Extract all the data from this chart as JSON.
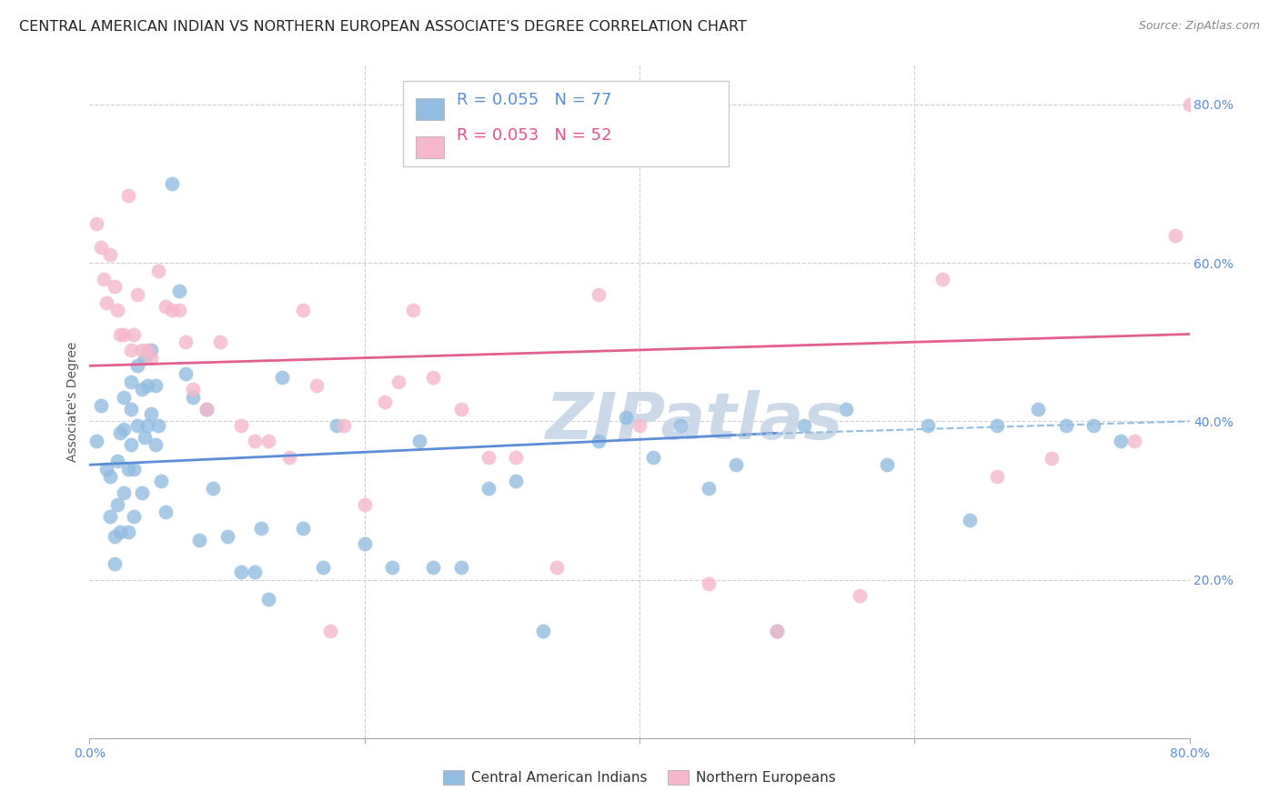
{
  "title": "CENTRAL AMERICAN INDIAN VS NORTHERN EUROPEAN ASSOCIATE'S DEGREE CORRELATION CHART",
  "source": "Source: ZipAtlas.com",
  "ylabel": "Associate's Degree",
  "xlim": [
    0.0,
    0.8
  ],
  "ylim": [
    0.0,
    0.85
  ],
  "blue_R": "R = 0.055",
  "blue_N": "N = 77",
  "pink_R": "R = 0.053",
  "pink_N": "N = 52",
  "blue_color": "#92bde0",
  "pink_color": "#f5b8cb",
  "blue_line_color": "#5b8dd9",
  "pink_line_color": "#e06090",
  "dashed_line_color": "#92bde0",
  "right_tick_color": "#5b8dd9",
  "watermark_color": "#ccd9e8",
  "background_color": "#ffffff",
  "grid_color": "#d0d0d0",
  "blue_scatter_x": [
    0.005,
    0.008,
    0.012,
    0.015,
    0.015,
    0.018,
    0.018,
    0.02,
    0.02,
    0.022,
    0.022,
    0.025,
    0.025,
    0.025,
    0.028,
    0.028,
    0.03,
    0.03,
    0.03,
    0.032,
    0.032,
    0.035,
    0.035,
    0.038,
    0.038,
    0.04,
    0.04,
    0.042,
    0.042,
    0.045,
    0.045,
    0.048,
    0.048,
    0.05,
    0.052,
    0.055,
    0.06,
    0.065,
    0.07,
    0.075,
    0.08,
    0.085,
    0.09,
    0.1,
    0.11,
    0.12,
    0.125,
    0.13,
    0.14,
    0.155,
    0.17,
    0.18,
    0.2,
    0.22,
    0.24,
    0.25,
    0.27,
    0.29,
    0.31,
    0.33,
    0.37,
    0.39,
    0.41,
    0.43,
    0.45,
    0.47,
    0.5,
    0.52,
    0.55,
    0.58,
    0.61,
    0.64,
    0.66,
    0.69,
    0.71,
    0.73,
    0.75
  ],
  "blue_scatter_y": [
    0.375,
    0.42,
    0.34,
    0.33,
    0.28,
    0.255,
    0.22,
    0.35,
    0.295,
    0.385,
    0.26,
    0.43,
    0.39,
    0.31,
    0.34,
    0.26,
    0.45,
    0.415,
    0.37,
    0.34,
    0.28,
    0.47,
    0.395,
    0.44,
    0.31,
    0.48,
    0.38,
    0.445,
    0.395,
    0.49,
    0.41,
    0.445,
    0.37,
    0.395,
    0.325,
    0.285,
    0.7,
    0.565,
    0.46,
    0.43,
    0.25,
    0.415,
    0.315,
    0.255,
    0.21,
    0.21,
    0.265,
    0.175,
    0.455,
    0.265,
    0.215,
    0.395,
    0.245,
    0.215,
    0.375,
    0.215,
    0.215,
    0.315,
    0.325,
    0.135,
    0.375,
    0.405,
    0.355,
    0.395,
    0.315,
    0.345,
    0.135,
    0.395,
    0.415,
    0.345,
    0.395,
    0.275,
    0.395,
    0.415,
    0.395,
    0.395,
    0.375
  ],
  "pink_scatter_x": [
    0.005,
    0.008,
    0.01,
    0.012,
    0.015,
    0.018,
    0.02,
    0.022,
    0.025,
    0.028,
    0.03,
    0.032,
    0.035,
    0.038,
    0.042,
    0.045,
    0.05,
    0.055,
    0.06,
    0.065,
    0.07,
    0.075,
    0.085,
    0.095,
    0.11,
    0.12,
    0.13,
    0.145,
    0.155,
    0.165,
    0.175,
    0.185,
    0.2,
    0.215,
    0.225,
    0.235,
    0.25,
    0.27,
    0.29,
    0.31,
    0.34,
    0.37,
    0.4,
    0.45,
    0.5,
    0.56,
    0.62,
    0.66,
    0.7,
    0.76,
    0.79,
    0.8
  ],
  "pink_scatter_y": [
    0.65,
    0.62,
    0.58,
    0.55,
    0.61,
    0.57,
    0.54,
    0.51,
    0.51,
    0.685,
    0.49,
    0.51,
    0.56,
    0.49,
    0.49,
    0.48,
    0.59,
    0.545,
    0.54,
    0.54,
    0.5,
    0.44,
    0.415,
    0.5,
    0.395,
    0.375,
    0.375,
    0.355,
    0.54,
    0.445,
    0.135,
    0.395,
    0.295,
    0.425,
    0.45,
    0.54,
    0.455,
    0.415,
    0.355,
    0.355,
    0.215,
    0.56,
    0.395,
    0.195,
    0.135,
    0.18,
    0.58,
    0.33,
    0.353,
    0.375,
    0.635,
    0.8
  ],
  "blue_line_x": [
    0.0,
    0.5
  ],
  "blue_line_y": [
    0.345,
    0.385
  ],
  "pink_line_x": [
    0.0,
    0.8
  ],
  "pink_line_y": [
    0.47,
    0.51
  ],
  "dashed_line_x": [
    0.47,
    0.8
  ],
  "dashed_line_y": [
    0.383,
    0.4
  ],
  "legend_blue_label": "R = 0.055   N = 77",
  "legend_pink_label": "R = 0.053   N = 52",
  "bottom_legend_blue": "Central American Indians",
  "bottom_legend_pink": "Northern Europeans",
  "title_fontsize": 11.5,
  "tick_fontsize": 10,
  "legend_fontsize": 13
}
